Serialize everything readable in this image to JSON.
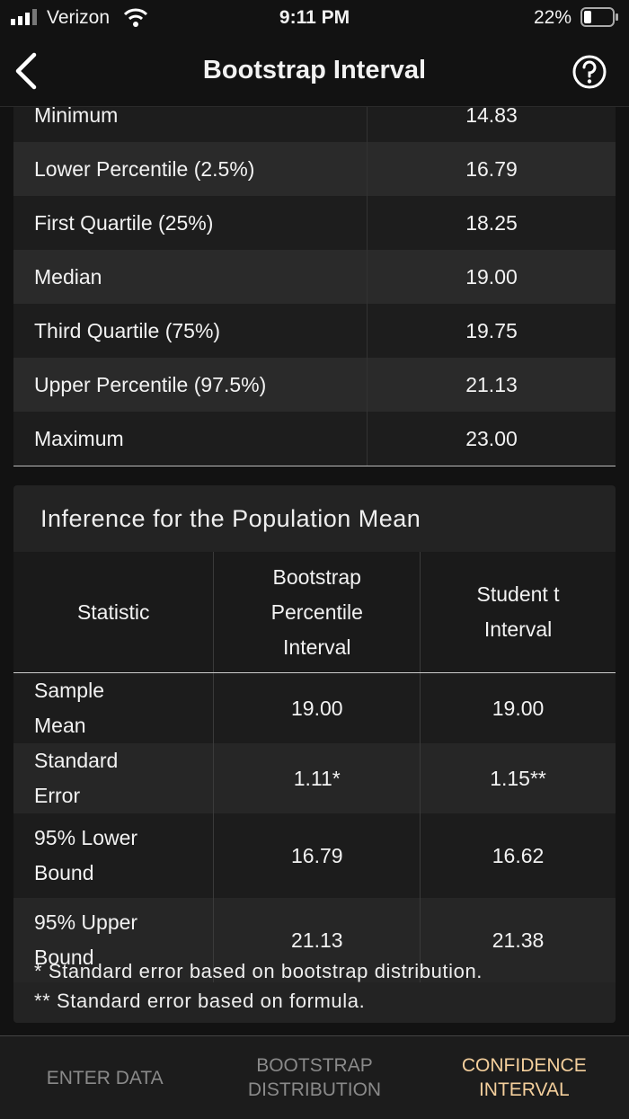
{
  "status_bar": {
    "carrier": "Verizon",
    "time": "9:11 PM",
    "battery": "22%"
  },
  "nav": {
    "title": "Bootstrap Interval"
  },
  "summary_table": {
    "rows": [
      [
        "Minimum",
        "14.83"
      ],
      [
        "Lower Percentile (2.5%)",
        "16.79"
      ],
      [
        "First Quartile (25%)",
        "18.25"
      ],
      [
        "Median",
        "19.00"
      ],
      [
        "Third Quartile (75%)",
        "19.75"
      ],
      [
        "Upper Percentile (97.5%)",
        "21.13"
      ],
      [
        "Maximum",
        "23.00"
      ]
    ]
  },
  "inference": {
    "title": "Inference for the Population Mean",
    "header": [
      "Statistic",
      "Bootstrap Percentile Interval",
      "Student t Interval"
    ],
    "rows": [
      [
        "Sample Mean",
        "19.00",
        "19.00"
      ],
      [
        "Standard Error",
        "1.11*",
        "1.15**"
      ],
      [
        "95% Lower Bound",
        "16.79",
        "16.62"
      ],
      [
        "95% Upper Bound",
        "21.13",
        "21.38"
      ]
    ],
    "notes": [
      "* Standard error based on bootstrap distribution.",
      "** Standard error based on formula."
    ]
  },
  "tabs": [
    {
      "label": "ENTER DATA"
    },
    {
      "label": "BOOTSTRAP DISTRIBUTION"
    },
    {
      "label": "CONFIDENCE INTERVAL"
    }
  ]
}
